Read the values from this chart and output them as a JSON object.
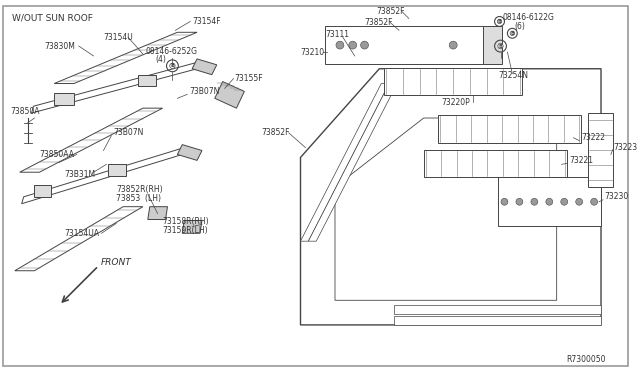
{
  "background_color": "#ffffff",
  "border_color": "#aaaaaa",
  "diagram_ref": "R7300050",
  "label_wo_sun_roof": "W/OUT SUN ROOF",
  "label_front": "FRONT",
  "text_color": "#333333",
  "line_color": "#444444",
  "hatch_color": "#777777"
}
